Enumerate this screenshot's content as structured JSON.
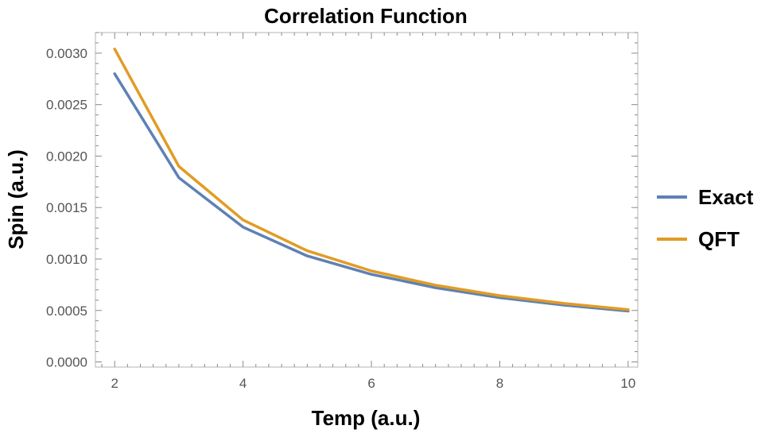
{
  "chart_data": {
    "type": "line",
    "title": "Correlation Function",
    "xlabel": "Temp (a.u.)",
    "ylabel": "Spin (a.u.)",
    "xlim": [
      1.7,
      10.15
    ],
    "ylim": [
      -5e-05,
      0.0032
    ],
    "x_ticks": [
      2,
      4,
      6,
      8,
      10
    ],
    "x_tick_labels": [
      "2",
      "4",
      "6",
      "8",
      "10"
    ],
    "y_ticks": [
      0.0,
      0.0005,
      0.001,
      0.0015,
      0.002,
      0.0025,
      0.003
    ],
    "y_tick_labels": [
      "0.0000",
      "0.0005",
      "0.0010",
      "0.0015",
      "0.0020",
      "0.0025",
      "0.0030"
    ],
    "grid": false,
    "legend_position": "right",
    "x": [
      2,
      3,
      4,
      5,
      6,
      7,
      8,
      9,
      10
    ],
    "series": [
      {
        "name": "Exact",
        "color": "#5E81B5",
        "values": [
          0.0028,
          0.00179,
          0.00131,
          0.00103,
          0.000851,
          0.000721,
          0.000625,
          0.000552,
          0.000494
        ]
      },
      {
        "name": "QFT",
        "color": "#E19C24",
        "values": [
          0.00304,
          0.0019,
          0.00138,
          0.00108,
          0.000884,
          0.000745,
          0.000644,
          0.000568,
          0.000508
        ]
      }
    ]
  }
}
